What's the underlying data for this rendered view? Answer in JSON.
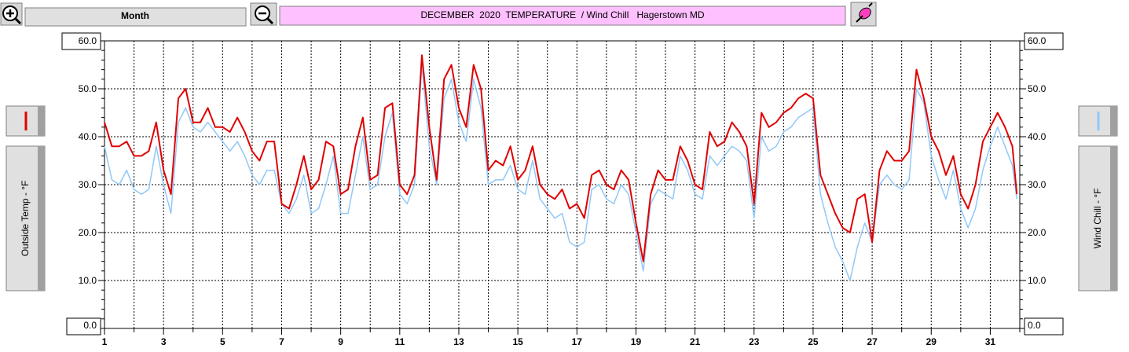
{
  "ui": {
    "range_button": "Month"
  },
  "chart_data": {
    "type": "line",
    "title": "DECEMBER  2020  TEMPERATURE  / Wind Chill   Hagerstown MD",
    "x": [
      1,
      1.25,
      1.5,
      1.75,
      2,
      2.25,
      2.5,
      2.75,
      3,
      3.25,
      3.5,
      3.75,
      4,
      4.25,
      4.5,
      4.75,
      5,
      5.25,
      5.5,
      5.75,
      6,
      6.25,
      6.5,
      6.75,
      7,
      7.25,
      7.5,
      7.75,
      8,
      8.25,
      8.5,
      8.75,
      9,
      9.25,
      9.5,
      9.75,
      10,
      10.25,
      10.5,
      10.75,
      11,
      11.25,
      11.5,
      11.75,
      12,
      12.25,
      12.5,
      12.75,
      13,
      13.25,
      13.5,
      13.75,
      14,
      14.25,
      14.5,
      14.75,
      15,
      15.25,
      15.5,
      15.75,
      16,
      16.25,
      16.5,
      16.75,
      17,
      17.25,
      17.5,
      17.75,
      18,
      18.25,
      18.5,
      18.75,
      19,
      19.25,
      19.5,
      19.75,
      20,
      20.25,
      20.5,
      20.75,
      21,
      21.25,
      21.5,
      21.75,
      22,
      22.25,
      22.5,
      22.75,
      23,
      23.25,
      23.5,
      23.75,
      24,
      24.25,
      24.5,
      24.75,
      25,
      25.25,
      25.5,
      25.75,
      26,
      26.25,
      26.5,
      26.75,
      27,
      27.25,
      27.5,
      27.75,
      28,
      28.25,
      28.5,
      28.75,
      29,
      29.25,
      29.5,
      29.75,
      30,
      30.25,
      30.5,
      30.75,
      31,
      31.25,
      31.5,
      31.75,
      31.9
    ],
    "series": [
      {
        "name": "Outside Temp - °F",
        "color": "#e00000",
        "values": [
          43,
          38,
          38,
          39,
          36,
          36,
          37,
          43,
          33,
          28,
          48,
          50,
          43,
          43,
          46,
          42,
          42,
          41,
          44,
          41,
          37,
          35,
          39,
          39,
          26,
          25,
          30,
          36,
          29,
          31,
          39,
          38,
          28,
          29,
          38,
          44,
          31,
          32,
          46,
          47,
          30,
          28,
          32,
          57,
          42,
          31,
          52,
          55,
          46,
          42,
          55,
          50,
          33,
          35,
          34,
          38,
          31,
          33,
          38,
          30,
          28,
          27,
          29,
          25,
          26,
          23,
          32,
          33,
          30,
          29,
          33,
          31,
          22,
          14,
          28,
          33,
          31,
          31,
          38,
          35,
          30,
          29,
          41,
          38,
          39,
          43,
          41,
          38,
          26,
          45,
          42,
          43,
          45,
          46,
          48,
          49,
          48,
          32,
          28,
          24,
          21,
          20,
          27,
          28,
          18,
          33,
          37,
          35,
          35,
          37,
          54,
          48,
          40,
          37,
          32,
          36,
          28,
          25,
          30,
          39,
          42,
          45,
          42,
          38,
          28
        ]
      },
      {
        "name": "Wind Chill - °F",
        "color": "#90c8f8",
        "axis": "y2",
        "values": [
          38,
          31,
          30,
          33,
          29,
          28,
          29,
          38,
          30,
          24,
          43,
          46,
          42,
          41,
          43,
          41,
          39,
          37,
          39,
          36,
          32,
          30,
          33,
          33,
          26,
          24,
          27,
          32,
          24,
          25,
          30,
          36,
          24,
          24,
          32,
          40,
          29,
          30,
          40,
          45,
          28,
          26,
          30,
          55,
          38,
          30,
          48,
          52,
          43,
          39,
          52,
          46,
          30,
          31,
          31,
          34,
          29,
          28,
          35,
          27,
          25,
          23,
          24,
          18,
          17,
          18,
          29,
          30,
          27,
          26,
          30,
          28,
          20,
          12,
          26,
          29,
          28,
          27,
          36,
          33,
          28,
          27,
          36,
          34,
          36,
          38,
          37,
          35,
          23,
          40,
          37,
          38,
          41,
          42,
          44,
          45,
          46,
          28,
          22,
          17,
          14,
          10,
          17,
          22,
          18,
          30,
          32,
          30,
          29,
          31,
          50,
          47,
          36,
          31,
          27,
          33,
          25,
          21,
          25,
          33,
          38,
          42,
          38,
          34,
          27
        ]
      }
    ],
    "xlim": [
      1,
      32
    ],
    "xticks": [
      1,
      3,
      5,
      7,
      9,
      11,
      13,
      15,
      17,
      19,
      21,
      23,
      25,
      27,
      29,
      31
    ],
    "x_minor_ticks": [
      2,
      4,
      6,
      8,
      10,
      12,
      14,
      16,
      18,
      20,
      22,
      24,
      26,
      28,
      30,
      32
    ],
    "ylim": [
      0,
      60
    ],
    "yticks": [
      {
        "value": 0,
        "label": "0.0"
      },
      {
        "value": 10,
        "label": "10.0"
      },
      {
        "value": 20,
        "label": "20.0"
      },
      {
        "value": 30,
        "label": "30.0"
      },
      {
        "value": 40,
        "label": "40.0"
      },
      {
        "value": 50,
        "label": "50.0"
      },
      {
        "value": 60,
        "label": "60.0"
      }
    ],
    "y2lim": [
      0,
      60
    ],
    "y2ticks": [
      {
        "value": 0,
        "label": "0.0"
      },
      {
        "value": 10,
        "label": "10.0"
      },
      {
        "value": 20,
        "label": "20.0"
      },
      {
        "value": 30,
        "label": "30.0"
      },
      {
        "value": 40,
        "label": "40.0"
      },
      {
        "value": 50,
        "label": "50.0"
      },
      {
        "value": 60,
        "label": "60.0"
      }
    ],
    "y_minor_step": 2,
    "grid": true
  }
}
